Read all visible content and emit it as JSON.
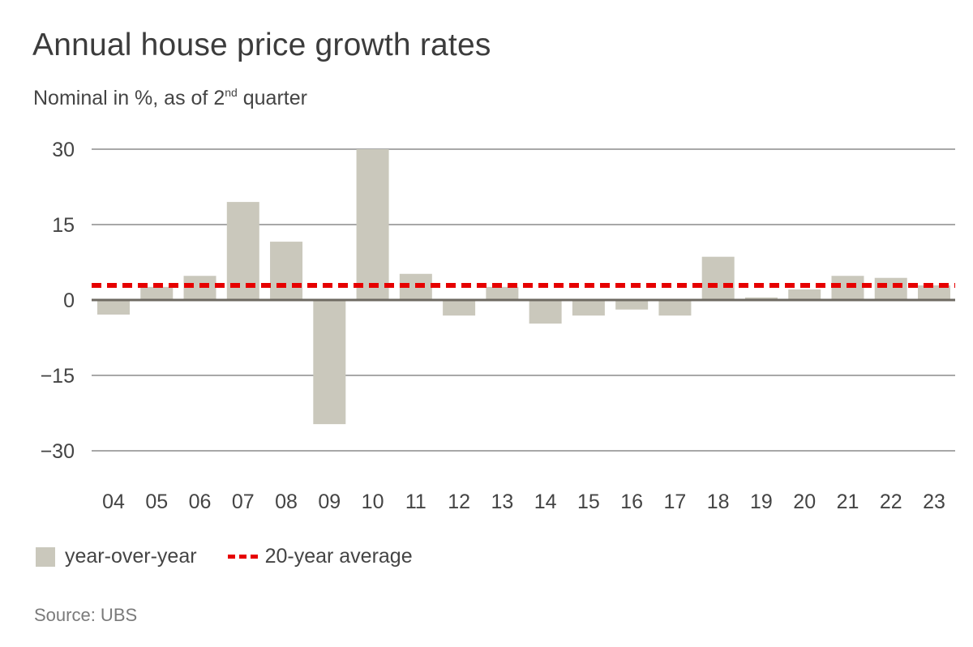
{
  "title": "Annual house price growth rates",
  "subtitle_main": "Nominal in %, as of 2",
  "subtitle_sup": "nd",
  "subtitle_tail": " quarter",
  "source": "Source: UBS",
  "colors": {
    "bar": "#cac8bc",
    "average_line": "#e60000",
    "grid": "#a8a8a8",
    "zero_line": "#6e6a62"
  },
  "chart_data": {
    "type": "bar",
    "title": "Annual house price growth rates",
    "subtitle": "Nominal in %, as of 2nd quarter",
    "xlabel": "",
    "ylabel": "",
    "categories": [
      "04",
      "05",
      "06",
      "07",
      "08",
      "09",
      "10",
      "11",
      "12",
      "13",
      "14",
      "15",
      "16",
      "17",
      "18",
      "19",
      "20",
      "21",
      "22",
      "23"
    ],
    "series": [
      {
        "name": "year-over-year",
        "type": "bar",
        "values": [
          -2.9,
          2.6,
          4.8,
          19.5,
          11.6,
          -24.7,
          30.0,
          5.2,
          -3.1,
          2.6,
          -4.7,
          -3.1,
          -1.9,
          -3.1,
          8.6,
          0.5,
          2.1,
          4.8,
          4.4,
          2.9
        ]
      },
      {
        "name": "20-year average",
        "type": "line",
        "style": "dashed",
        "value": 2.9
      }
    ],
    "yticks": [
      30,
      15,
      0,
      -15,
      -30
    ],
    "ytick_labels": [
      "30",
      "15",
      "0",
      "−15",
      "−30"
    ],
    "ylim": [
      -30,
      30
    ],
    "grid": true,
    "legend": {
      "position": "bottom-left",
      "entries": [
        "year-over-year",
        "20-year average"
      ]
    }
  }
}
